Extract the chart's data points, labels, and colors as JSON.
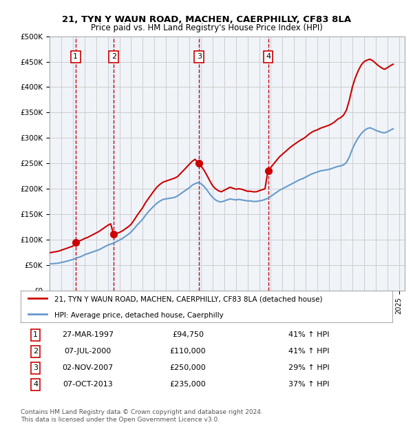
{
  "title": "21, TYN Y WAUN ROAD, MACHEN, CAERPHILLY, CF83 8LA",
  "subtitle": "Price paid vs. HM Land Registry's House Price Index (HPI)",
  "legend_line1": "21, TYN Y WAUN ROAD, MACHEN, CAERPHILLY, CF83 8LA (detached house)",
  "legend_line2": "HPI: Average price, detached house, Caerphilly",
  "footer1": "Contains HM Land Registry data © Crown copyright and database right 2024.",
  "footer2": "This data is licensed under the Open Government Licence v3.0.",
  "ylim": [
    0,
    500000
  ],
  "yticks": [
    0,
    50000,
    100000,
    150000,
    200000,
    250000,
    300000,
    350000,
    400000,
    450000,
    500000
  ],
  "xlim_start": 1995.0,
  "xlim_end": 2025.5,
  "sale_dates": [
    1997.23,
    2000.52,
    2007.84,
    2013.77
  ],
  "sale_prices": [
    94750,
    110000,
    250000,
    235000
  ],
  "sale_labels": [
    "1",
    "2",
    "3",
    "4"
  ],
  "sale_info": [
    {
      "label": "1",
      "date": "27-MAR-1997",
      "price": "£94,750",
      "hpi": "41% ↑ HPI"
    },
    {
      "label": "2",
      "date": "07-JUL-2000",
      "price": "£110,000",
      "hpi": "41% ↑ HPI"
    },
    {
      "label": "3",
      "date": "02-NOV-2007",
      "price": "£250,000",
      "hpi": "29% ↑ HPI"
    },
    {
      "label": "4",
      "date": "07-OCT-2013",
      "price": "£235,000",
      "hpi": "37% ↑ HPI"
    }
  ],
  "red_line_color": "#cc0000",
  "blue_line_color": "#6699cc",
  "vline_color": "#cc0000",
  "shade_color": "#ddeeff",
  "grid_color": "#cccccc",
  "hpi_data_x": [
    1995.0,
    1995.25,
    1995.5,
    1995.75,
    1996.0,
    1996.25,
    1996.5,
    1996.75,
    1997.0,
    1997.25,
    1997.5,
    1997.75,
    1998.0,
    1998.25,
    1998.5,
    1998.75,
    1999.0,
    1999.25,
    1999.5,
    1999.75,
    2000.0,
    2000.25,
    2000.5,
    2000.75,
    2001.0,
    2001.25,
    2001.5,
    2001.75,
    2002.0,
    2002.25,
    2002.5,
    2002.75,
    2003.0,
    2003.25,
    2003.5,
    2003.75,
    2004.0,
    2004.25,
    2004.5,
    2004.75,
    2005.0,
    2005.25,
    2005.5,
    2005.75,
    2006.0,
    2006.25,
    2006.5,
    2006.75,
    2007.0,
    2007.25,
    2007.5,
    2007.75,
    2008.0,
    2008.25,
    2008.5,
    2008.75,
    2009.0,
    2009.25,
    2009.5,
    2009.75,
    2010.0,
    2010.25,
    2010.5,
    2010.75,
    2011.0,
    2011.25,
    2011.5,
    2011.75,
    2012.0,
    2012.25,
    2012.5,
    2012.75,
    2013.0,
    2013.25,
    2013.5,
    2013.75,
    2014.0,
    2014.25,
    2014.5,
    2014.75,
    2015.0,
    2015.25,
    2015.5,
    2015.75,
    2016.0,
    2016.25,
    2016.5,
    2016.75,
    2017.0,
    2017.25,
    2017.5,
    2017.75,
    2018.0,
    2018.25,
    2018.5,
    2018.75,
    2019.0,
    2019.25,
    2019.5,
    2019.75,
    2020.0,
    2020.25,
    2020.5,
    2020.75,
    2021.0,
    2021.25,
    2021.5,
    2021.75,
    2022.0,
    2022.25,
    2022.5,
    2022.75,
    2023.0,
    2023.25,
    2023.5,
    2023.75,
    2024.0,
    2024.25,
    2024.5
  ],
  "hpi_data_y": [
    52000,
    52500,
    53000,
    53500,
    55000,
    56000,
    57500,
    59000,
    61000,
    63000,
    65000,
    67000,
    70000,
    72000,
    74000,
    76000,
    78000,
    80000,
    83000,
    86000,
    89000,
    91000,
    93000,
    96000,
    99000,
    102000,
    106000,
    110000,
    115000,
    121000,
    128000,
    134000,
    140000,
    148000,
    155000,
    161000,
    167000,
    172000,
    176000,
    179000,
    180000,
    181000,
    182000,
    183000,
    186000,
    190000,
    194000,
    198000,
    202000,
    207000,
    210000,
    212000,
    210000,
    205000,
    198000,
    190000,
    183000,
    178000,
    175000,
    174000,
    176000,
    178000,
    180000,
    179000,
    178000,
    179000,
    178000,
    177000,
    176000,
    176000,
    175000,
    175000,
    176000,
    177000,
    179000,
    181000,
    185000,
    189000,
    193000,
    197000,
    200000,
    203000,
    206000,
    209000,
    212000,
    215000,
    218000,
    220000,
    223000,
    226000,
    229000,
    231000,
    233000,
    235000,
    236000,
    237000,
    238000,
    240000,
    242000,
    244000,
    245000,
    247000,
    252000,
    263000,
    278000,
    290000,
    300000,
    308000,
    314000,
    318000,
    320000,
    318000,
    315000,
    313000,
    311000,
    310000,
    312000,
    315000,
    318000
  ],
  "red_line_x": [
    1995.0,
    1995.25,
    1995.5,
    1995.75,
    1996.0,
    1996.25,
    1996.5,
    1996.75,
    1997.0,
    1997.25,
    1997.5,
    1997.75,
    1998.0,
    1998.25,
    1998.5,
    1998.75,
    1999.0,
    1999.25,
    1999.5,
    1999.75,
    2000.0,
    2000.25,
    2000.5,
    2000.75,
    2001.0,
    2001.25,
    2001.5,
    2001.75,
    2002.0,
    2002.25,
    2002.5,
    2002.75,
    2003.0,
    2003.25,
    2003.5,
    2003.75,
    2004.0,
    2004.25,
    2004.5,
    2004.75,
    2005.0,
    2005.25,
    2005.5,
    2005.75,
    2006.0,
    2006.25,
    2006.5,
    2006.75,
    2007.0,
    2007.25,
    2007.5,
    2007.75,
    2008.0,
    2008.25,
    2008.5,
    2008.75,
    2009.0,
    2009.25,
    2009.5,
    2009.75,
    2010.0,
    2010.25,
    2010.5,
    2010.75,
    2011.0,
    2011.25,
    2011.5,
    2011.75,
    2012.0,
    2012.25,
    2012.5,
    2012.75,
    2013.0,
    2013.25,
    2013.5,
    2013.75,
    2014.0,
    2014.25,
    2014.5,
    2014.75,
    2015.0,
    2015.25,
    2015.5,
    2015.75,
    2016.0,
    2016.25,
    2016.5,
    2016.75,
    2017.0,
    2017.25,
    2017.5,
    2017.75,
    2018.0,
    2018.25,
    2018.5,
    2018.75,
    2019.0,
    2019.25,
    2019.5,
    2019.75,
    2020.0,
    2020.25,
    2020.5,
    2020.75,
    2021.0,
    2021.25,
    2021.5,
    2021.75,
    2022.0,
    2022.25,
    2022.5,
    2022.75,
    2023.0,
    2023.25,
    2023.5,
    2023.75,
    2024.0,
    2024.25,
    2024.5
  ],
  "red_line_y": [
    74000,
    75000,
    76000,
    77000,
    79000,
    81000,
    83000,
    85000,
    87000,
    94750,
    97000,
    99000,
    102000,
    104000,
    107000,
    110000,
    113000,
    116000,
    120000,
    124000,
    128000,
    131000,
    110000,
    112000,
    114000,
    117000,
    121000,
    125000,
    130000,
    138000,
    147000,
    155000,
    163000,
    173000,
    181000,
    189000,
    197000,
    204000,
    209000,
    213000,
    215000,
    217000,
    219000,
    221000,
    224000,
    230000,
    236000,
    242000,
    248000,
    254000,
    258000,
    250000,
    245000,
    237000,
    227000,
    216000,
    206000,
    200000,
    196000,
    194000,
    197000,
    200000,
    203000,
    201000,
    199000,
    200000,
    199000,
    197000,
    195000,
    195000,
    194000,
    194000,
    196000,
    198000,
    200000,
    235000,
    242000,
    249000,
    256000,
    263000,
    268000,
    273000,
    278000,
    283000,
    287000,
    291000,
    295000,
    298000,
    302000,
    307000,
    311000,
    314000,
    316000,
    319000,
    321000,
    323000,
    325000,
    328000,
    332000,
    337000,
    340000,
    345000,
    355000,
    375000,
    400000,
    418000,
    432000,
    443000,
    450000,
    453000,
    455000,
    452000,
    447000,
    442000,
    438000,
    435000,
    438000,
    442000,
    445000
  ],
  "background_color": "#ffffff",
  "plot_bg_color": "#f0f4f8"
}
